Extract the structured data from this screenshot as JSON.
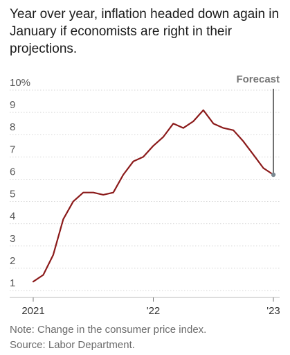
{
  "title": "Year over year, inflation headed down again in January if economists are right in their projections.",
  "note": "Note: Change in the consumer price index.",
  "source": "Source: Labor Department.",
  "chart_data": {
    "type": "line",
    "title": "Year over year, inflation headed down again in January if economists are right in their projections.",
    "xlabel": "",
    "ylabel": "",
    "ylim": [
      1,
      10
    ],
    "grid": true,
    "y_ticks": [
      {
        "value": 10,
        "label": "10%"
      },
      {
        "value": 9,
        "label": "9"
      },
      {
        "value": 8,
        "label": "8"
      },
      {
        "value": 7,
        "label": "7"
      },
      {
        "value": 6,
        "label": "6"
      },
      {
        "value": 5,
        "label": "5"
      },
      {
        "value": 4,
        "label": "4"
      },
      {
        "value": 3,
        "label": "3"
      },
      {
        "value": 2,
        "label": "2"
      },
      {
        "value": 1,
        "label": "1"
      }
    ],
    "x_ticks": [
      {
        "x": "2021-01",
        "label": "2021"
      },
      {
        "x": "2022-01",
        "label": "'22"
      },
      {
        "x": "2023-01",
        "label": "'23"
      }
    ],
    "x": [
      "2021-01",
      "2021-02",
      "2021-03",
      "2021-04",
      "2021-05",
      "2021-06",
      "2021-07",
      "2021-08",
      "2021-09",
      "2021-10",
      "2021-11",
      "2021-12",
      "2022-01",
      "2022-02",
      "2022-03",
      "2022-04",
      "2022-05",
      "2022-06",
      "2022-07",
      "2022-08",
      "2022-09",
      "2022-10",
      "2022-11",
      "2022-12",
      "2023-01"
    ],
    "series": [
      {
        "values": [
          1.4,
          1.7,
          2.6,
          4.2,
          5.0,
          5.4,
          5.4,
          5.3,
          5.4,
          6.2,
          6.8,
          7.0,
          7.5,
          7.9,
          8.5,
          8.3,
          8.6,
          9.1,
          8.5,
          8.3,
          8.2,
          7.7,
          7.1,
          6.5,
          6.2
        ],
        "color": "#8b1a1a"
      }
    ],
    "annotations": [
      {
        "label": "Forecast",
        "x": "2023-01"
      }
    ],
    "forecast_marker_color": "#7a8891"
  }
}
